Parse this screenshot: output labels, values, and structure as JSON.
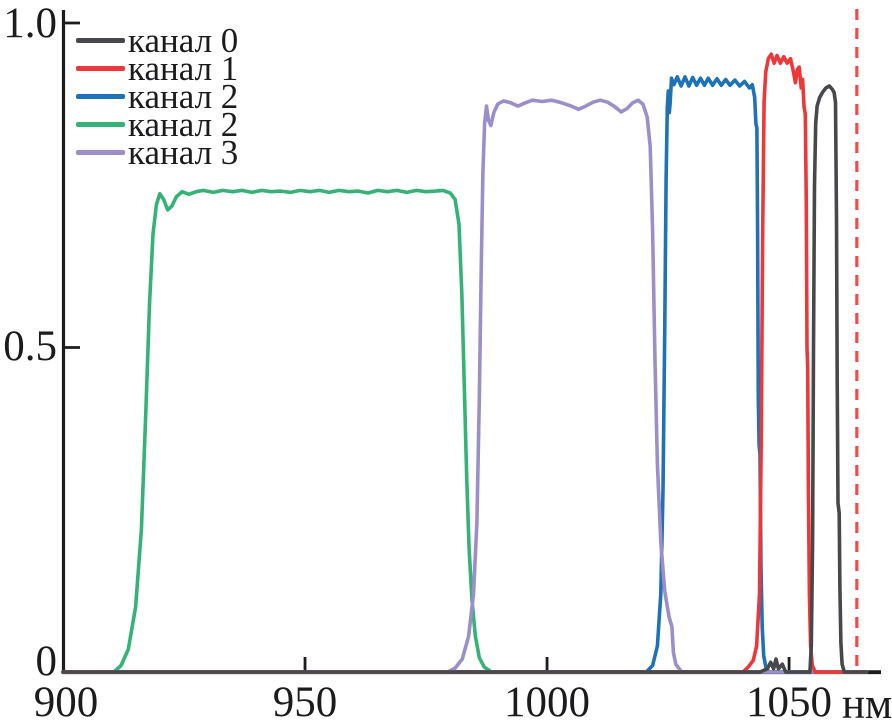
{
  "chart_data": {
    "type": "line",
    "title": "",
    "description": "Spectral transmission bands of five channels vs wavelength (nm)",
    "axis_color": "#1c1c1e",
    "x_axis": {
      "unit": "нм",
      "min": 900,
      "max": 1069,
      "tick_values": [
        900,
        950,
        1000,
        1050
      ],
      "tick_labels": [
        "900",
        "950",
        "1000",
        "1050"
      ],
      "inner_tick_marks": [
        950,
        1000,
        1050
      ]
    },
    "y_axis": {
      "min": 0,
      "max": 1.0,
      "tick_values": [
        0,
        0.5,
        1.0
      ],
      "tick_labels": [
        "0",
        "0.5",
        "1.0"
      ],
      "inner_tick_marks": [
        0.5,
        1.0
      ]
    },
    "legend_position": "top-left",
    "grid": false,
    "draw_order": [
      3,
      2,
      4,
      1,
      0
    ],
    "annotation_line": {
      "x_nm": 1064,
      "color": "#f24b4b",
      "style": "dashed"
    },
    "series": [
      {
        "name": "канал 0",
        "color": "#47484c",
        "band_nm": [
          1054.5,
          1061
        ],
        "peak": 0.905,
        "points": [
          [
            900,
            0
          ],
          [
            1044,
            0
          ],
          [
            1045.5,
            0.005
          ],
          [
            1046.2,
            0.015
          ],
          [
            1046.8,
            0.005
          ],
          [
            1047.3,
            0.02
          ],
          [
            1047.8,
            0.005
          ],
          [
            1048.6,
            0.012
          ],
          [
            1049.3,
            0
          ],
          [
            1054.3,
            0
          ],
          [
            1054.6,
            0.04
          ],
          [
            1054.85,
            0.2
          ],
          [
            1055.05,
            0.5
          ],
          [
            1055.25,
            0.75
          ],
          [
            1055.5,
            0.845
          ],
          [
            1055.8,
            0.872
          ],
          [
            1056.3,
            0.885
          ],
          [
            1056.9,
            0.893
          ],
          [
            1057.6,
            0.9
          ],
          [
            1058.3,
            0.903
          ],
          [
            1058.9,
            0.898
          ],
          [
            1059.3,
            0.893
          ],
          [
            1059.6,
            0.878
          ],
          [
            1059.8,
            0.7
          ],
          [
            1059.95,
            0.45
          ],
          [
            1060.1,
            0.26
          ],
          [
            1060.35,
            0.245
          ],
          [
            1060.5,
            0.13
          ],
          [
            1060.7,
            0.045
          ],
          [
            1060.95,
            0.012
          ],
          [
            1061.4,
            0
          ],
          [
            1066,
            0
          ]
        ]
      },
      {
        "name": "канал 1",
        "color": "#ee3739",
        "band_nm": [
          1044.5,
          1054
        ],
        "peak": 0.95,
        "points": [
          [
            900,
            0
          ],
          [
            1040.5,
            0
          ],
          [
            1041.6,
            0.008
          ],
          [
            1042.6,
            0.018
          ],
          [
            1043.3,
            0.04
          ],
          [
            1043.9,
            0.12
          ],
          [
            1044.25,
            0.35
          ],
          [
            1044.55,
            0.68
          ],
          [
            1044.85,
            0.88
          ],
          [
            1045.2,
            0.925
          ],
          [
            1045.7,
            0.945
          ],
          [
            1046.3,
            0.952
          ],
          [
            1046.9,
            0.938
          ],
          [
            1047.5,
            0.95
          ],
          [
            1048.2,
            0.938
          ],
          [
            1048.9,
            0.948
          ],
          [
            1049.6,
            0.938
          ],
          [
            1050.3,
            0.945
          ],
          [
            1050.9,
            0.925
          ],
          [
            1051.3,
            0.908
          ],
          [
            1051.7,
            0.928
          ],
          [
            1052.1,
            0.932
          ],
          [
            1052.5,
            0.9
          ],
          [
            1052.8,
            0.913
          ],
          [
            1053.1,
            0.87
          ],
          [
            1053.35,
            0.86
          ],
          [
            1053.55,
            0.72
          ],
          [
            1053.7,
            0.5
          ],
          [
            1053.85,
            0.47
          ],
          [
            1054,
            0.28
          ],
          [
            1054.2,
            0.12
          ],
          [
            1054.45,
            0.04
          ],
          [
            1054.8,
            0.01
          ],
          [
            1055.4,
            0
          ],
          [
            1066,
            0
          ]
        ]
      },
      {
        "name": "канал 2",
        "color": "#1d72b8",
        "band_nm": [
          1025,
          1043.5
        ],
        "peak": 0.91,
        "points": [
          [
            900,
            0
          ],
          [
            1020.5,
            0
          ],
          [
            1021.8,
            0.01
          ],
          [
            1022.8,
            0.04
          ],
          [
            1023.5,
            0.12
          ],
          [
            1023.95,
            0.28
          ],
          [
            1024.3,
            0.52
          ],
          [
            1024.6,
            0.76
          ],
          [
            1024.85,
            0.87
          ],
          [
            1025.05,
            0.895
          ],
          [
            1025.25,
            0.862
          ],
          [
            1025.45,
            0.878
          ],
          [
            1025.7,
            0.915
          ],
          [
            1026.2,
            0.905
          ],
          [
            1026.9,
            0.917
          ],
          [
            1027.7,
            0.903
          ],
          [
            1028.5,
            0.917
          ],
          [
            1029.3,
            0.903
          ],
          [
            1030.1,
            0.916
          ],
          [
            1030.9,
            0.904
          ],
          [
            1031.7,
            0.915
          ],
          [
            1032.5,
            0.904
          ],
          [
            1033.3,
            0.915
          ],
          [
            1034.2,
            0.904
          ],
          [
            1035.1,
            0.914
          ],
          [
            1036,
            0.904
          ],
          [
            1036.9,
            0.913
          ],
          [
            1037.8,
            0.904
          ],
          [
            1038.8,
            0.912
          ],
          [
            1039.8,
            0.903
          ],
          [
            1040.8,
            0.91
          ],
          [
            1041.8,
            0.9
          ],
          [
            1042.4,
            0.905
          ],
          [
            1042.9,
            0.885
          ],
          [
            1043.15,
            0.845
          ],
          [
            1043.35,
            0.838
          ],
          [
            1043.5,
            0.68
          ],
          [
            1043.65,
            0.42
          ],
          [
            1043.8,
            0.35
          ],
          [
            1044,
            0.335
          ],
          [
            1044.2,
            0.16
          ],
          [
            1044.45,
            0.07
          ],
          [
            1044.75,
            0.025
          ],
          [
            1045.2,
            0.008
          ],
          [
            1045.8,
            0
          ],
          [
            1066,
            0
          ]
        ]
      },
      {
        "name": "канал 2",
        "color": "#35b377",
        "band_nm": [
          918.5,
          982.5
        ],
        "peak": 0.742,
        "points": [
          [
            900,
            0
          ],
          [
            910.5,
            0
          ],
          [
            912,
            0.01
          ],
          [
            913.5,
            0.035
          ],
          [
            915,
            0.1
          ],
          [
            916.2,
            0.22
          ],
          [
            917.1,
            0.4
          ],
          [
            917.9,
            0.57
          ],
          [
            918.6,
            0.675
          ],
          [
            919.3,
            0.72
          ],
          [
            920,
            0.737
          ],
          [
            920.8,
            0.728
          ],
          [
            921.6,
            0.712
          ],
          [
            922.5,
            0.718
          ],
          [
            923.4,
            0.732
          ],
          [
            924.6,
            0.74
          ],
          [
            926,
            0.736
          ],
          [
            927.5,
            0.74
          ],
          [
            929,
            0.742
          ],
          [
            931,
            0.739
          ],
          [
            933,
            0.742
          ],
          [
            935,
            0.74
          ],
          [
            937,
            0.742
          ],
          [
            939,
            0.739
          ],
          [
            941,
            0.742
          ],
          [
            943,
            0.74
          ],
          [
            945,
            0.741
          ],
          [
            947,
            0.739
          ],
          [
            949,
            0.742
          ],
          [
            951,
            0.74
          ],
          [
            953,
            0.742
          ],
          [
            955,
            0.739
          ],
          [
            957,
            0.742
          ],
          [
            959,
            0.74
          ],
          [
            961,
            0.741
          ],
          [
            963,
            0.738
          ],
          [
            965,
            0.742
          ],
          [
            967,
            0.74
          ],
          [
            969,
            0.742
          ],
          [
            971,
            0.739
          ],
          [
            973,
            0.742
          ],
          [
            975,
            0.74
          ],
          [
            977,
            0.741
          ],
          [
            978.5,
            0.742
          ],
          [
            980,
            0.738
          ],
          [
            981,
            0.728
          ],
          [
            981.8,
            0.69
          ],
          [
            982.4,
            0.58
          ],
          [
            982.9,
            0.44
          ],
          [
            983.4,
            0.3
          ],
          [
            983.9,
            0.19
          ],
          [
            984.5,
            0.11
          ],
          [
            985.2,
            0.055
          ],
          [
            986,
            0.022
          ],
          [
            987,
            0.008
          ],
          [
            988.5,
            0
          ],
          [
            1066,
            0
          ]
        ]
      },
      {
        "name": "канал 3",
        "color": "#9c8ec9",
        "band_nm": [
          987,
          1021.5
        ],
        "peak": 0.881,
        "points": [
          [
            900,
            0
          ],
          [
            979.5,
            0
          ],
          [
            981,
            0.006
          ],
          [
            982.5,
            0.02
          ],
          [
            983.8,
            0.055
          ],
          [
            984.8,
            0.12
          ],
          [
            985.5,
            0.23
          ],
          [
            986,
            0.42
          ],
          [
            986.4,
            0.62
          ],
          [
            986.75,
            0.77
          ],
          [
            987.1,
            0.845
          ],
          [
            987.5,
            0.872
          ],
          [
            987.9,
            0.85
          ],
          [
            988.4,
            0.842
          ],
          [
            989,
            0.862
          ],
          [
            989.8,
            0.875
          ],
          [
            991,
            0.88
          ],
          [
            992.5,
            0.877
          ],
          [
            994,
            0.872
          ],
          [
            995.5,
            0.877
          ],
          [
            997,
            0.881
          ],
          [
            999,
            0.879
          ],
          [
            1001,
            0.881
          ],
          [
            1003,
            0.877
          ],
          [
            1005,
            0.872
          ],
          [
            1006.5,
            0.867
          ],
          [
            1008,
            0.872
          ],
          [
            1009.5,
            0.878
          ],
          [
            1011,
            0.881
          ],
          [
            1012.5,
            0.878
          ],
          [
            1014,
            0.871
          ],
          [
            1015.3,
            0.863
          ],
          [
            1016.5,
            0.868
          ],
          [
            1017.7,
            0.877
          ],
          [
            1018.8,
            0.881
          ],
          [
            1019.8,
            0.875
          ],
          [
            1020.7,
            0.855
          ],
          [
            1021.3,
            0.81
          ],
          [
            1021.8,
            0.68
          ],
          [
            1022.3,
            0.48
          ],
          [
            1022.8,
            0.32
          ],
          [
            1023.5,
            0.2
          ],
          [
            1024.3,
            0.125
          ],
          [
            1025.2,
            0.085
          ],
          [
            1025.8,
            0.07
          ],
          [
            1026.1,
            0.03
          ],
          [
            1026.6,
            0.012
          ],
          [
            1027.8,
            0
          ],
          [
            1066,
            0
          ]
        ]
      }
    ]
  }
}
